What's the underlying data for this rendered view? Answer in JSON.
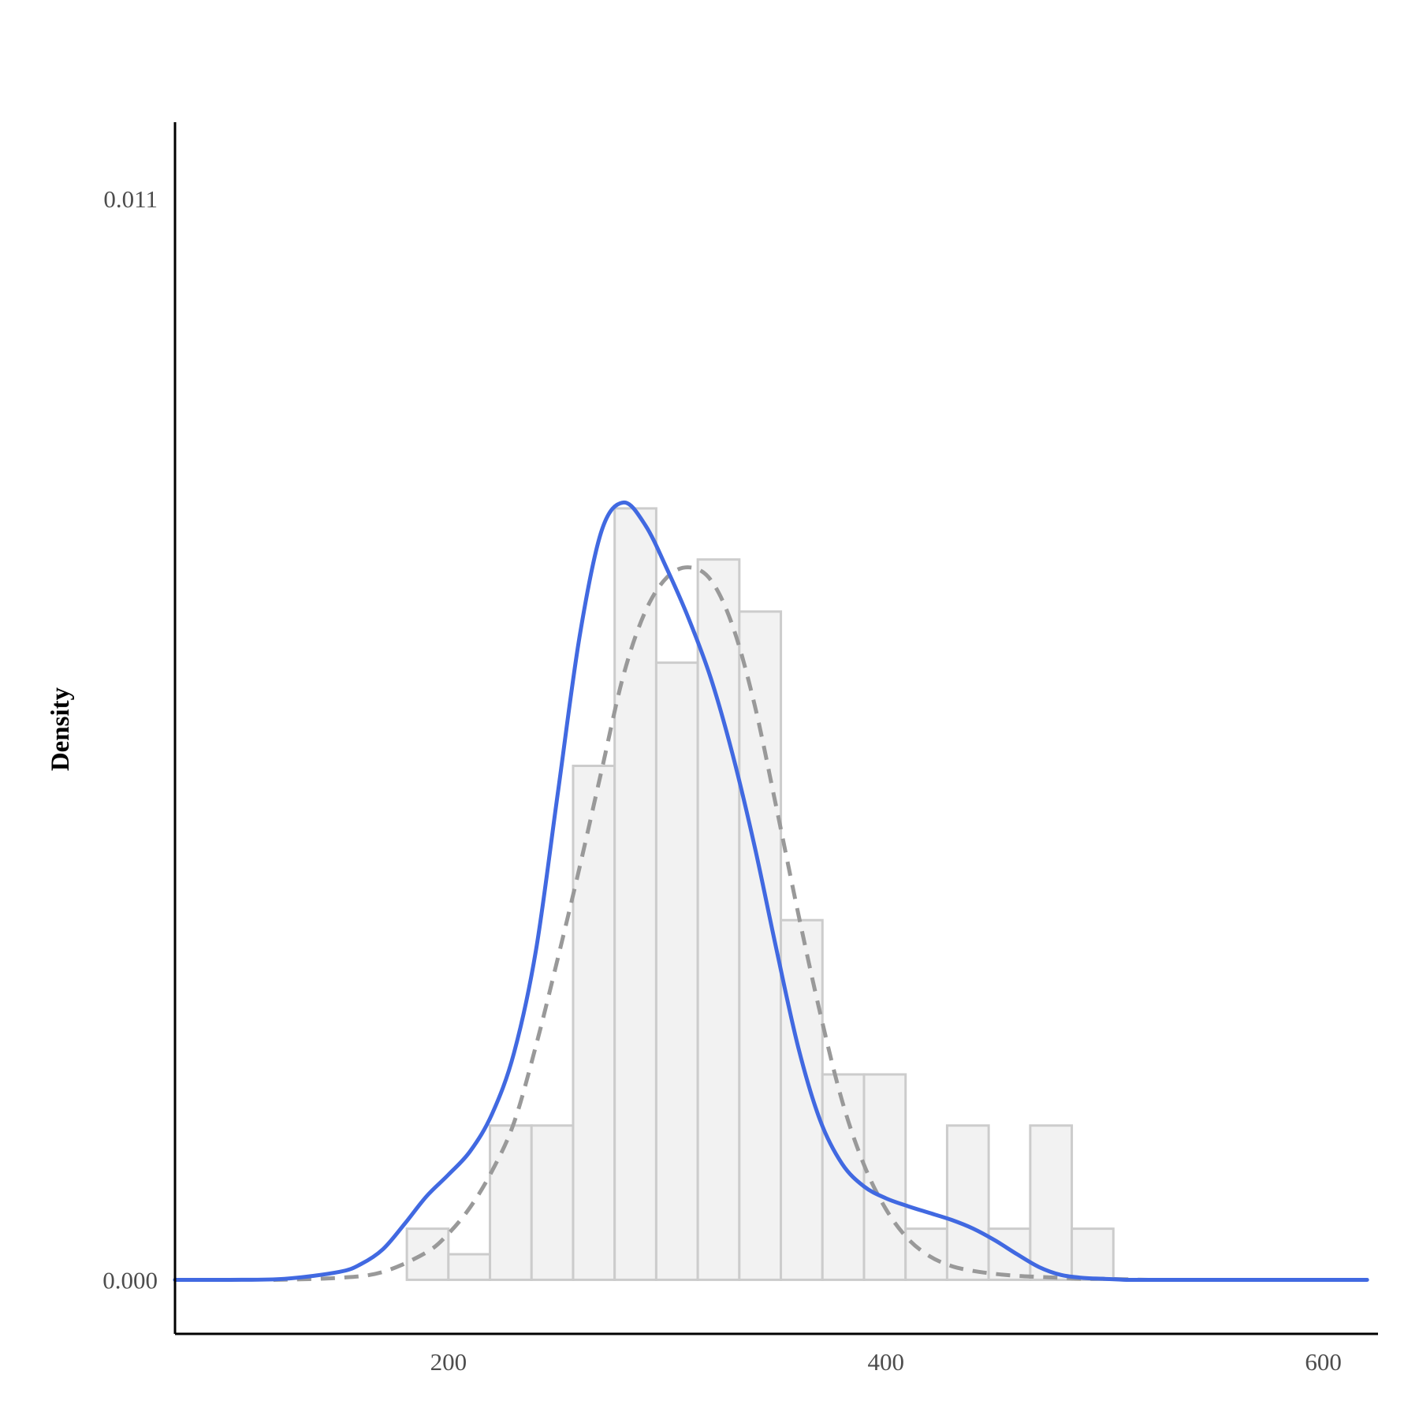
{
  "chart_data": {
    "type": "histogram",
    "title": "",
    "xlabel": "",
    "ylabel": "Density",
    "xlim": [
      75,
      625
    ],
    "ylim": [
      -0.00055,
      0.01178
    ],
    "x_ticks": [
      200,
      400,
      600
    ],
    "x_tick_labels": [
      "200",
      "400",
      "600"
    ],
    "y_ticks": [
      0.0,
      0.011
    ],
    "y_tick_labels": [
      "0.000",
      "0.011"
    ],
    "grid": false,
    "legend": "none",
    "colors": {
      "bar_fill": "#f2f2f2",
      "bar_edge": "#cccccc",
      "kde": "#4169e1",
      "normal": "#999999",
      "axis": "#000000"
    },
    "histogram": {
      "bin_edges": [
        181,
        200,
        219,
        238,
        257,
        276,
        295,
        314,
        333,
        352,
        371,
        390,
        409,
        428,
        447,
        466,
        485,
        504
      ],
      "densities": [
        0.00052,
        0.00026,
        0.00157,
        0.00157,
        0.00523,
        0.00785,
        0.00628,
        0.00733,
        0.0068,
        0.00366,
        0.00209,
        0.00209,
        0.00052,
        0.00157,
        0.00052,
        0.00157,
        0.00052
      ]
    },
    "series": [
      {
        "kind": "kde",
        "x": [
          75,
          100,
          125,
          150,
          160,
          170,
          180,
          190,
          200,
          210,
          220,
          230,
          240,
          250,
          260,
          270,
          280,
          290,
          300,
          310,
          320,
          330,
          340,
          350,
          360,
          370,
          380,
          390,
          400,
          410,
          420,
          430,
          440,
          450,
          460,
          470,
          480,
          490,
          500,
          510,
          520,
          530,
          540,
          550,
          575,
          600,
          620
        ],
        "y": [
          0.0,
          0.0,
          1e-05,
          8e-05,
          0.00016,
          0.00031,
          0.00057,
          0.00085,
          0.00107,
          0.00131,
          0.00169,
          0.00231,
          0.00335,
          0.00495,
          0.00655,
          0.00762,
          0.00791,
          0.00768,
          0.00723,
          0.00672,
          0.00612,
          0.00534,
          0.00441,
          0.00336,
          0.00236,
          0.00162,
          0.00118,
          0.00095,
          0.00083,
          0.00075,
          0.00068,
          0.00061,
          0.00052,
          0.0004,
          0.00026,
          0.00013,
          5e-05,
          2e-05,
          1e-05,
          0.0,
          0.0,
          0.0,
          0.0,
          0.0,
          0.0,
          0.0,
          0.0
        ]
      },
      {
        "kind": "normal",
        "x": [
          120,
          150,
          170,
          190,
          200,
          210,
          220,
          230,
          240,
          250,
          260,
          270,
          280,
          290,
          300,
          310,
          320,
          330,
          340,
          350,
          360,
          370,
          380,
          390,
          400,
          410,
          420,
          430,
          440,
          450,
          460,
          470,
          480,
          490,
          500,
          520,
          540,
          560,
          580,
          600,
          620
        ],
        "y": [
          0.0,
          2e-05,
          8e-05,
          0.00028,
          0.00047,
          0.00074,
          0.00111,
          0.0016,
          0.00238,
          0.00327,
          0.0042,
          0.00518,
          0.00615,
          0.0068,
          0.00715,
          0.00725,
          0.00712,
          0.00665,
          0.00585,
          0.0048,
          0.00372,
          0.00271,
          0.00182,
          0.00117,
          0.00072,
          0.00042,
          0.00024,
          0.00014,
          9e-05,
          6e-05,
          4e-05,
          3e-05,
          2e-05,
          1e-05,
          1e-05,
          0.0,
          0.0,
          0.0,
          0.0,
          0.0,
          0.0
        ]
      }
    ]
  }
}
